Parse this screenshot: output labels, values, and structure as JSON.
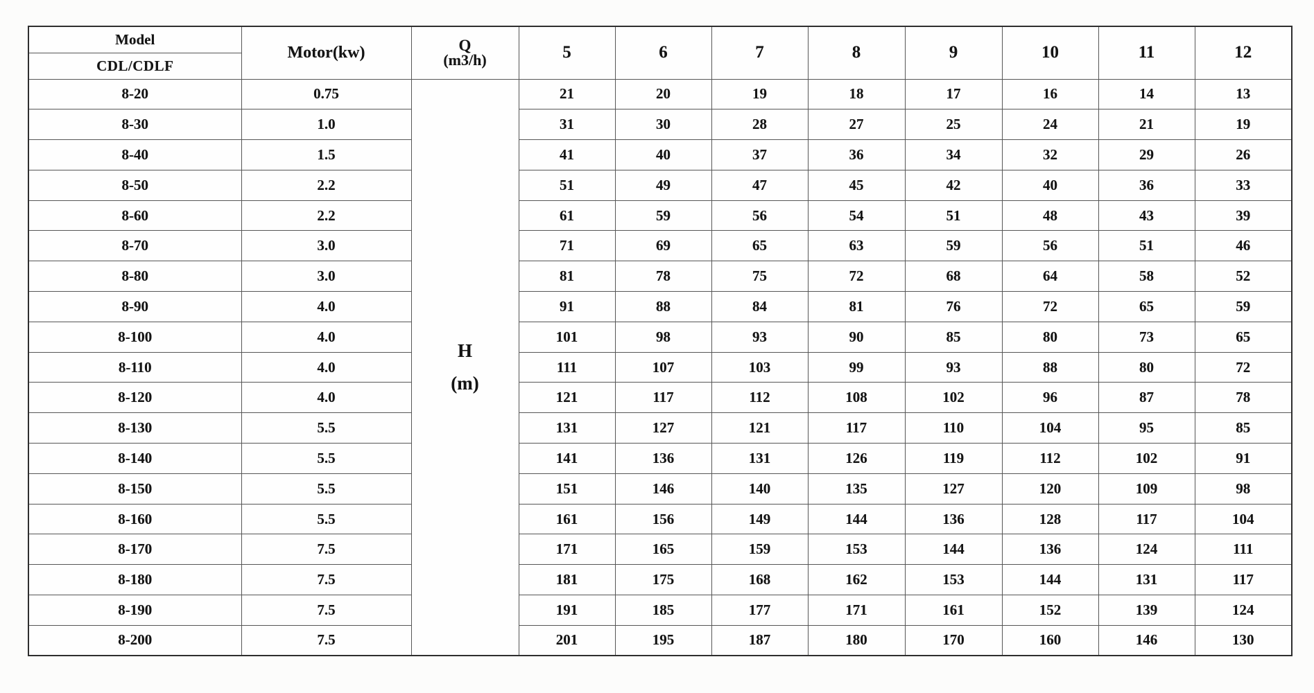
{
  "table": {
    "header": {
      "model_label": "Model",
      "model_sub_label": "CDL/CDLF",
      "motor_label": "Motor(kw)",
      "q_label": "Q",
      "q_unit_label": "(m3/h)",
      "flow_columns": [
        "5",
        "6",
        "7",
        "8",
        "9",
        "10",
        "11",
        "12"
      ]
    },
    "h_cell": {
      "line1": "H",
      "line2": "(m)"
    },
    "rows": [
      {
        "model": "8-20",
        "motor": "0.75",
        "h": [
          "21",
          "20",
          "19",
          "18",
          "17",
          "16",
          "14",
          "13"
        ]
      },
      {
        "model": "8-30",
        "motor": "1.0",
        "h": [
          "31",
          "30",
          "28",
          "27",
          "25",
          "24",
          "21",
          "19"
        ]
      },
      {
        "model": "8-40",
        "motor": "1.5",
        "h": [
          "41",
          "40",
          "37",
          "36",
          "34",
          "32",
          "29",
          "26"
        ]
      },
      {
        "model": "8-50",
        "motor": "2.2",
        "h": [
          "51",
          "49",
          "47",
          "45",
          "42",
          "40",
          "36",
          "33"
        ]
      },
      {
        "model": "8-60",
        "motor": "2.2",
        "h": [
          "61",
          "59",
          "56",
          "54",
          "51",
          "48",
          "43",
          "39"
        ]
      },
      {
        "model": "8-70",
        "motor": "3.0",
        "h": [
          "71",
          "69",
          "65",
          "63",
          "59",
          "56",
          "51",
          "46"
        ]
      },
      {
        "model": "8-80",
        "motor": "3.0",
        "h": [
          "81",
          "78",
          "75",
          "72",
          "68",
          "64",
          "58",
          "52"
        ]
      },
      {
        "model": "8-90",
        "motor": "4.0",
        "h": [
          "91",
          "88",
          "84",
          "81",
          "76",
          "72",
          "65",
          "59"
        ]
      },
      {
        "model": "8-100",
        "motor": "4.0",
        "h": [
          "101",
          "98",
          "93",
          "90",
          "85",
          "80",
          "73",
          "65"
        ]
      },
      {
        "model": "8-110",
        "motor": "4.0",
        "h": [
          "111",
          "107",
          "103",
          "99",
          "93",
          "88",
          "80",
          "72"
        ]
      },
      {
        "model": "8-120",
        "motor": "4.0",
        "h": [
          "121",
          "117",
          "112",
          "108",
          "102",
          "96",
          "87",
          "78"
        ]
      },
      {
        "model": "8-130",
        "motor": "5.5",
        "h": [
          "131",
          "127",
          "121",
          "117",
          "110",
          "104",
          "95",
          "85"
        ]
      },
      {
        "model": "8-140",
        "motor": "5.5",
        "h": [
          "141",
          "136",
          "131",
          "126",
          "119",
          "112",
          "102",
          "91"
        ]
      },
      {
        "model": "8-150",
        "motor": "5.5",
        "h": [
          "151",
          "146",
          "140",
          "135",
          "127",
          "120",
          "109",
          "98"
        ]
      },
      {
        "model": "8-160",
        "motor": "5.5",
        "h": [
          "161",
          "156",
          "149",
          "144",
          "136",
          "128",
          "117",
          "104"
        ]
      },
      {
        "model": "8-170",
        "motor": "7.5",
        "h": [
          "171",
          "165",
          "159",
          "153",
          "144",
          "136",
          "124",
          "111"
        ]
      },
      {
        "model": "8-180",
        "motor": "7.5",
        "h": [
          "181",
          "175",
          "168",
          "162",
          "153",
          "144",
          "131",
          "117"
        ]
      },
      {
        "model": "8-190",
        "motor": "7.5",
        "h": [
          "191",
          "185",
          "177",
          "171",
          "161",
          "152",
          "139",
          "124"
        ]
      },
      {
        "model": "8-200",
        "motor": "7.5",
        "h": [
          "201",
          "195",
          "187",
          "180",
          "170",
          "160",
          "146",
          "130"
        ]
      }
    ]
  }
}
